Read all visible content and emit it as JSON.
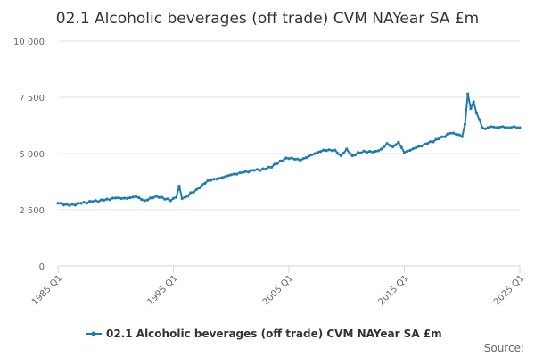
{
  "chart_data": {
    "type": "line",
    "title": "02.1 Alcoholic beverages (off trade) CVM NAYear SA £m",
    "xlabel": "",
    "ylabel": "",
    "x_tick_labels": [
      "1985 Q1",
      "1995 Q1",
      "2005 Q1",
      "2015 Q1",
      "2025 Q1"
    ],
    "x_tick_years": [
      1985,
      1995,
      2005,
      2015,
      2025
    ],
    "xlim": [
      1985,
      2025
    ],
    "ylim": [
      0,
      10000
    ],
    "y_ticks": [
      0,
      2500,
      5000,
      7500,
      10000
    ],
    "y_tick_labels": [
      "0",
      "2 500",
      "5 000",
      "7 500",
      "10 000"
    ],
    "grid": true,
    "legend_position": "bottom",
    "color": "#1f7bb4",
    "series": [
      {
        "name": "02.1 Alcoholic beverages (off trade) CVM NAYear SA £m",
        "x": [
          1985.0,
          1986.0,
          1987.0,
          1988.0,
          1989.0,
          1990.0,
          1991.0,
          1991.75,
          1992.5,
          1993.5,
          1994.0,
          1994.75,
          1995.25,
          1995.5,
          1995.75,
          1996.0,
          1997.0,
          1998.0,
          1999.0,
          2000.0,
          2001.0,
          2002.0,
          2003.0,
          2004.0,
          2004.75,
          2005.25,
          2006.0,
          2007.0,
          2008.0,
          2009.0,
          2009.5,
          2010.0,
          2010.5,
          2011.0,
          2012.0,
          2012.5,
          2013.0,
          2013.5,
          2014.0,
          2014.5,
          2015.0,
          2016.0,
          2017.0,
          2018.0,
          2019.0,
          2019.5,
          2020.0,
          2020.25,
          2020.5,
          2020.75,
          2021.0,
          2021.25,
          2021.5,
          2021.75,
          2022.0,
          2022.5,
          2023.0,
          2023.5,
          2024.0,
          2024.5,
          2025.0
        ],
        "values": [
          2790,
          2690,
          2780,
          2860,
          2920,
          3020,
          3000,
          3090,
          2900,
          3100,
          3050,
          2900,
          3050,
          3550,
          3000,
          3050,
          3400,
          3800,
          3900,
          4050,
          4150,
          4250,
          4300,
          4550,
          4800,
          4800,
          4700,
          4950,
          5150,
          5150,
          4900,
          5200,
          4900,
          5050,
          5100,
          5100,
          5200,
          5450,
          5300,
          5500,
          5050,
          5250,
          5450,
          5650,
          5900,
          5850,
          5750,
          6300,
          7650,
          7000,
          7300,
          6800,
          6500,
          6150,
          6100,
          6200,
          6150,
          6200,
          6150,
          6200,
          6150
        ]
      }
    ]
  },
  "source_label": "Source:"
}
